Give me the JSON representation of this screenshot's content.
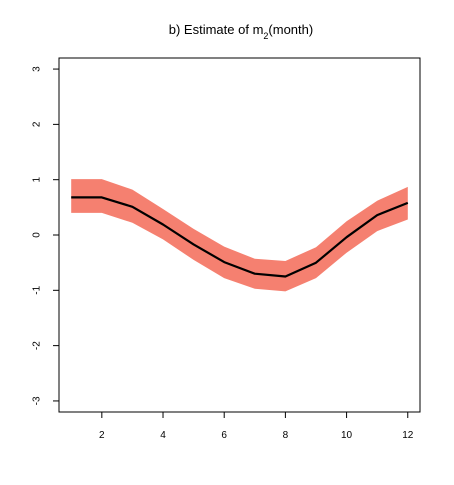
{
  "chart_data": {
    "type": "line",
    "title_prefix": "b) Estimate of m",
    "title_subscript": "2",
    "title_suffix": "(month)",
    "x": [
      1,
      2,
      3,
      4,
      5,
      6,
      7,
      8,
      9,
      10,
      11,
      12
    ],
    "series": [
      {
        "values": [
          0.68,
          0.68,
          0.51,
          0.19,
          -0.17,
          -0.49,
          -0.7,
          -0.75,
          -0.5,
          -0.04,
          0.36,
          0.58
        ]
      }
    ],
    "band": {
      "lower": [
        0.4,
        0.4,
        0.22,
        -0.08,
        -0.45,
        -0.78,
        -0.97,
        -1.02,
        -0.78,
        -0.32,
        0.07,
        0.28
      ],
      "upper": [
        1.01,
        1.01,
        0.82,
        0.47,
        0.11,
        -0.21,
        -0.43,
        -0.47,
        -0.22,
        0.25,
        0.62,
        0.87
      ],
      "color": "#f58070"
    },
    "line_color": "#000000",
    "xlim": [
      0.6,
      12.4
    ],
    "ylim": [
      -3.2,
      3.2
    ],
    "xticks": [
      "2",
      "4",
      "6",
      "8",
      "10",
      "12"
    ],
    "yticks": [
      "-3",
      "-2",
      "-1",
      "0",
      "1",
      "2",
      "3"
    ],
    "grid": false,
    "legend": "none"
  }
}
